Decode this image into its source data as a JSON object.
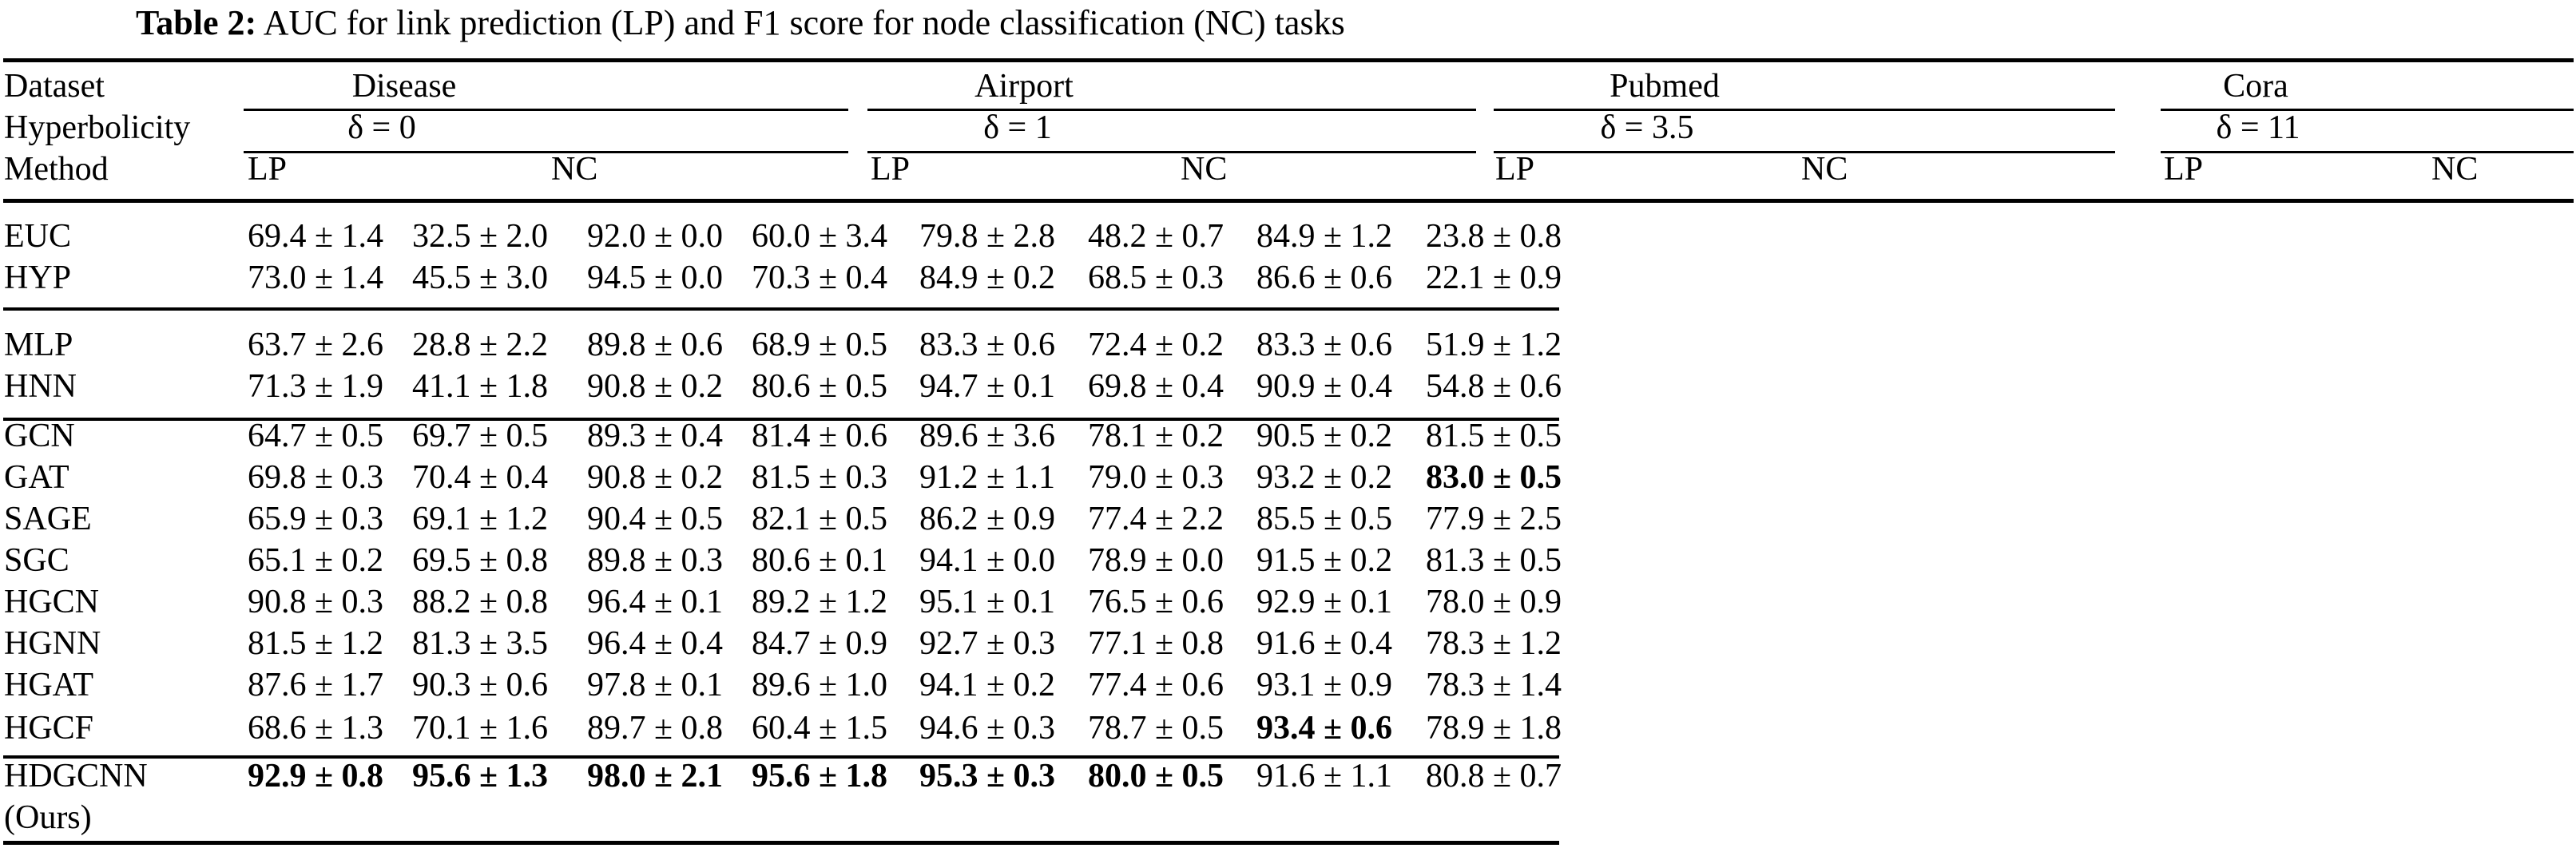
{
  "title": {
    "label": "Table 2:",
    "text": "AUC for link prediction (LP) and F1 score for node classification (NC) tasks"
  },
  "header": {
    "row_labels": [
      "Dataset",
      "Hyperbolicity",
      "Method"
    ]
  },
  "table": {
    "col_groups": [
      {
        "name": "Disease",
        "delta": "δ = 0",
        "sub": [
          "LP",
          "NC"
        ]
      },
      {
        "name": "Airport",
        "delta": "δ = 1",
        "sub": [
          "LP",
          "NC"
        ]
      },
      {
        "name": "Pubmed",
        "delta": "δ = 3.5",
        "sub": [
          "LP",
          "NC"
        ]
      },
      {
        "name": "Cora",
        "delta": "δ = 11",
        "sub": [
          "LP",
          "NC"
        ]
      }
    ],
    "rows": [
      {
        "method": "EUC",
        "values": [
          "69.4 ± 1.4",
          "32.5 ± 2.0",
          "92.0 ± 0.0",
          "60.0 ± 3.4",
          "79.8 ± 2.8",
          "48.2 ± 0.7",
          "84.9 ± 1.2",
          "23.8 ± 0.8"
        ],
        "bold": [
          0,
          0,
          0,
          0,
          0,
          0,
          0,
          0
        ]
      },
      {
        "method": "HYP",
        "values": [
          "73.0 ± 1.4",
          "45.5 ± 3.0",
          "94.5 ± 0.0",
          "70.3 ± 0.4",
          "84.9 ± 0.2",
          "68.5 ± 0.3",
          "86.6 ± 0.6",
          "22.1 ± 0.9"
        ],
        "bold": [
          0,
          0,
          0,
          0,
          0,
          0,
          0,
          0
        ]
      },
      {
        "method": "MLP",
        "values": [
          "63.7 ± 2.6",
          "28.8 ± 2.2",
          "89.8 ± 0.6",
          "68.9 ± 0.5",
          "83.3 ± 0.6",
          "72.4 ± 0.2",
          "83.3 ± 0.6",
          "51.9 ± 1.2"
        ],
        "bold": [
          0,
          0,
          0,
          0,
          0,
          0,
          0,
          0
        ]
      },
      {
        "method": "HNN",
        "values": [
          "71.3 ± 1.9",
          "41.1 ± 1.8",
          "90.8 ± 0.2",
          "80.6 ± 0.5",
          "94.7 ± 0.1",
          "69.8 ± 0.4",
          "90.9 ± 0.4",
          "54.8 ± 0.6"
        ],
        "bold": [
          0,
          0,
          0,
          0,
          0,
          0,
          0,
          0
        ]
      },
      {
        "method": "GCN",
        "values": [
          "64.7 ± 0.5",
          "69.7 ± 0.5",
          "89.3 ± 0.4",
          "81.4 ± 0.6",
          "89.6 ± 3.6",
          "78.1 ± 0.2",
          "90.5 ± 0.2",
          "81.5 ± 0.5"
        ],
        "bold": [
          0,
          0,
          0,
          0,
          0,
          0,
          0,
          0
        ]
      },
      {
        "method": "GAT",
        "values": [
          "69.8 ± 0.3",
          "70.4 ± 0.4",
          "90.8 ± 0.2",
          "81.5 ± 0.3",
          "91.2 ± 1.1",
          "79.0 ± 0.3",
          "93.2 ± 0.2",
          "83.0 ± 0.5"
        ],
        "bold": [
          0,
          0,
          0,
          0,
          0,
          0,
          0,
          1
        ]
      },
      {
        "method": "SAGE",
        "values": [
          "65.9 ± 0.3",
          "69.1 ± 1.2",
          "90.4 ± 0.5",
          "82.1 ± 0.5",
          "86.2 ± 0.9",
          "77.4 ± 2.2",
          "85.5 ± 0.5",
          "77.9 ± 2.5"
        ],
        "bold": [
          0,
          0,
          0,
          0,
          0,
          0,
          0,
          0
        ]
      },
      {
        "method": "SGC",
        "values": [
          "65.1 ± 0.2",
          "69.5 ± 0.8",
          "89.8 ± 0.3",
          "80.6 ± 0.1",
          "94.1 ± 0.0",
          "78.9 ± 0.0",
          "91.5 ± 0.2",
          "81.3 ± 0.5"
        ],
        "bold": [
          0,
          0,
          0,
          0,
          0,
          0,
          0,
          0
        ]
      },
      {
        "method": "HGCN",
        "values": [
          "90.8 ± 0.3",
          "88.2 ± 0.8",
          "96.4 ± 0.1",
          "89.2 ± 1.2",
          "95.1 ± 0.1",
          "76.5 ± 0.6",
          "92.9 ± 0.1",
          "78.0 ± 0.9"
        ],
        "bold": [
          0,
          0,
          0,
          0,
          0,
          0,
          0,
          0
        ]
      },
      {
        "method": "HGNN",
        "values": [
          "81.5 ± 1.2",
          "81.3 ± 3.5",
          "96.4 ± 0.4",
          "84.7 ± 0.9",
          "92.7 ± 0.3",
          "77.1 ± 0.8",
          "91.6 ± 0.4",
          "78.3 ± 1.2"
        ],
        "bold": [
          0,
          0,
          0,
          0,
          0,
          0,
          0,
          0
        ]
      },
      {
        "method": "HGAT",
        "values": [
          "87.6 ± 1.7",
          "90.3 ± 0.6",
          "97.8 ± 0.1",
          "89.6 ± 1.0",
          "94.1 ± 0.2",
          "77.4 ± 0.6",
          "93.1 ± 0.9",
          "78.3 ± 1.4"
        ],
        "bold": [
          0,
          0,
          0,
          0,
          0,
          0,
          0,
          0
        ]
      },
      {
        "method": "HGCF",
        "values": [
          "68.6 ± 1.3",
          "70.1 ± 1.6",
          "89.7 ± 0.8",
          "60.4 ± 1.5",
          "94.6 ± 0.3",
          "78.7 ± 0.5",
          "93.4 ± 0.6",
          "78.9 ± 1.8"
        ],
        "bold": [
          0,
          0,
          0,
          0,
          0,
          0,
          1,
          0
        ]
      },
      {
        "method": "HDGCNN",
        "method_note": "(Ours)",
        "values": [
          "92.9 ± 0.8",
          "95.6 ± 1.3",
          "98.0 ± 2.1",
          "95.6 ± 1.8",
          "95.3 ± 0.3",
          "80.0 ± 0.5",
          "91.6 ± 1.1",
          "80.8 ± 0.7"
        ],
        "bold": [
          1,
          1,
          1,
          1,
          1,
          1,
          0,
          0
        ]
      }
    ]
  }
}
